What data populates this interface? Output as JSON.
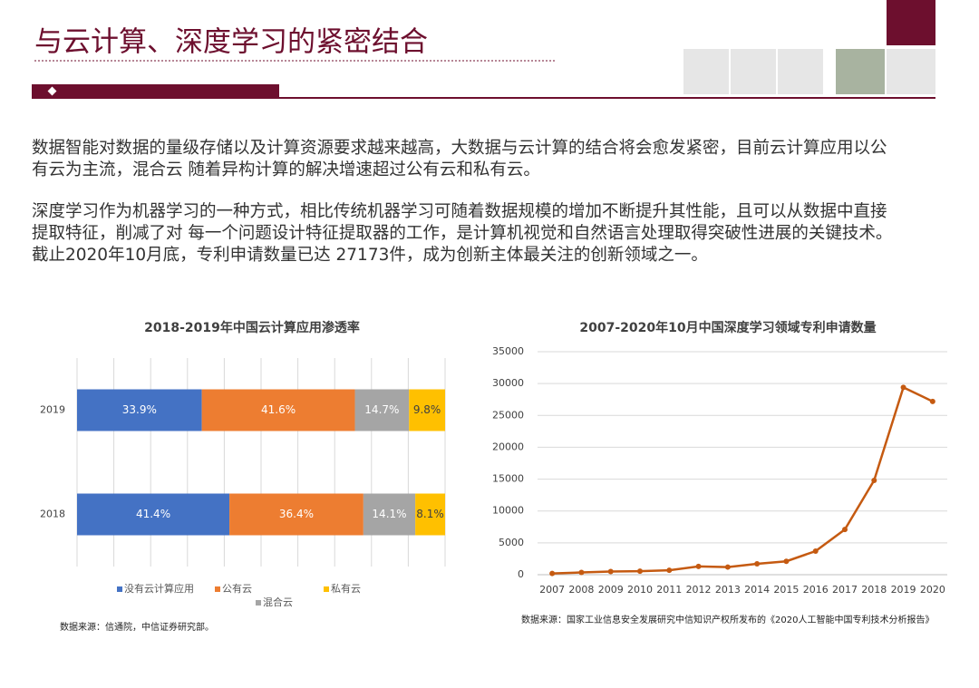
{
  "header": {
    "title": "与云计算、深度学习的紧密结合"
  },
  "paragraphs": [
    "数据智能对数据的量级存储以及计算资源要求越来越高，大数据与云计算的结合将会愈发紧密，目前云计算应用以公有云为主流，混合云 随着异构计算的解决增速超过公有云和私有云。",
    "深度学习作为机器学习的一种方式，相比传统机器学习可随着数据规模的增加不断提升其性能，且可以从数据中直接提取特征，削减了对 每一个问题设计特征提取器的工作，是计算机视觉和自然语言处理取得突破性进展的关键技术。截止2020年10月底，专利申请数量已达 27173件，成为创新主体最关注的创新领域之一。"
  ],
  "chart_data": [
    {
      "type": "stacked-bar-horizontal",
      "title": "2018-2019年中国云计算应用渗透率",
      "categories": [
        "2019",
        "2018"
      ],
      "xlim": [
        0,
        100
      ],
      "xgrid": [
        0,
        10,
        20,
        30,
        40,
        50,
        60,
        70,
        80,
        90,
        100
      ],
      "series": [
        {
          "name": "没有云计算应用",
          "color": "#4472c4",
          "values": [
            33.9,
            41.4
          ],
          "value_labels": [
            "33.9%",
            "41.4%"
          ]
        },
        {
          "name": "公有云",
          "color": "#ed7d31",
          "values": [
            41.6,
            36.4
          ],
          "value_labels": [
            "41.6%",
            "36.4%"
          ]
        },
        {
          "name": "混合云",
          "color": "#a5a5a5",
          "values": [
            14.7,
            14.1
          ],
          "value_labels": [
            "14.7%",
            "14.1%"
          ]
        },
        {
          "name": "私有云",
          "color": "#ffc000",
          "values": [
            9.8,
            8.1
          ],
          "value_labels": [
            "9.8%",
            "8.1%"
          ]
        }
      ],
      "source": "数据来源：信通院，中信证券研究部。"
    },
    {
      "type": "line",
      "title": "2007-2020年10月中国深度学习领域专利申请数量",
      "categories": [
        "2007",
        "2008",
        "2009",
        "2010",
        "2011",
        "2012",
        "2013",
        "2014",
        "2015",
        "2016",
        "2017",
        "2018",
        "2019",
        "2020"
      ],
      "values": [
        200,
        350,
        500,
        550,
        700,
        1300,
        1200,
        1700,
        2100,
        3700,
        7100,
        14800,
        29400,
        27200
      ],
      "color": "#c55a11",
      "ylim": [
        0,
        35000
      ],
      "yticks": [
        0,
        5000,
        10000,
        15000,
        20000,
        25000,
        30000,
        35000
      ],
      "grid": true,
      "source": "数据来源：国家工业信息安全发展研究中信知识产权所发布的《2020人工智能中国专利技术分析报告》"
    }
  ]
}
